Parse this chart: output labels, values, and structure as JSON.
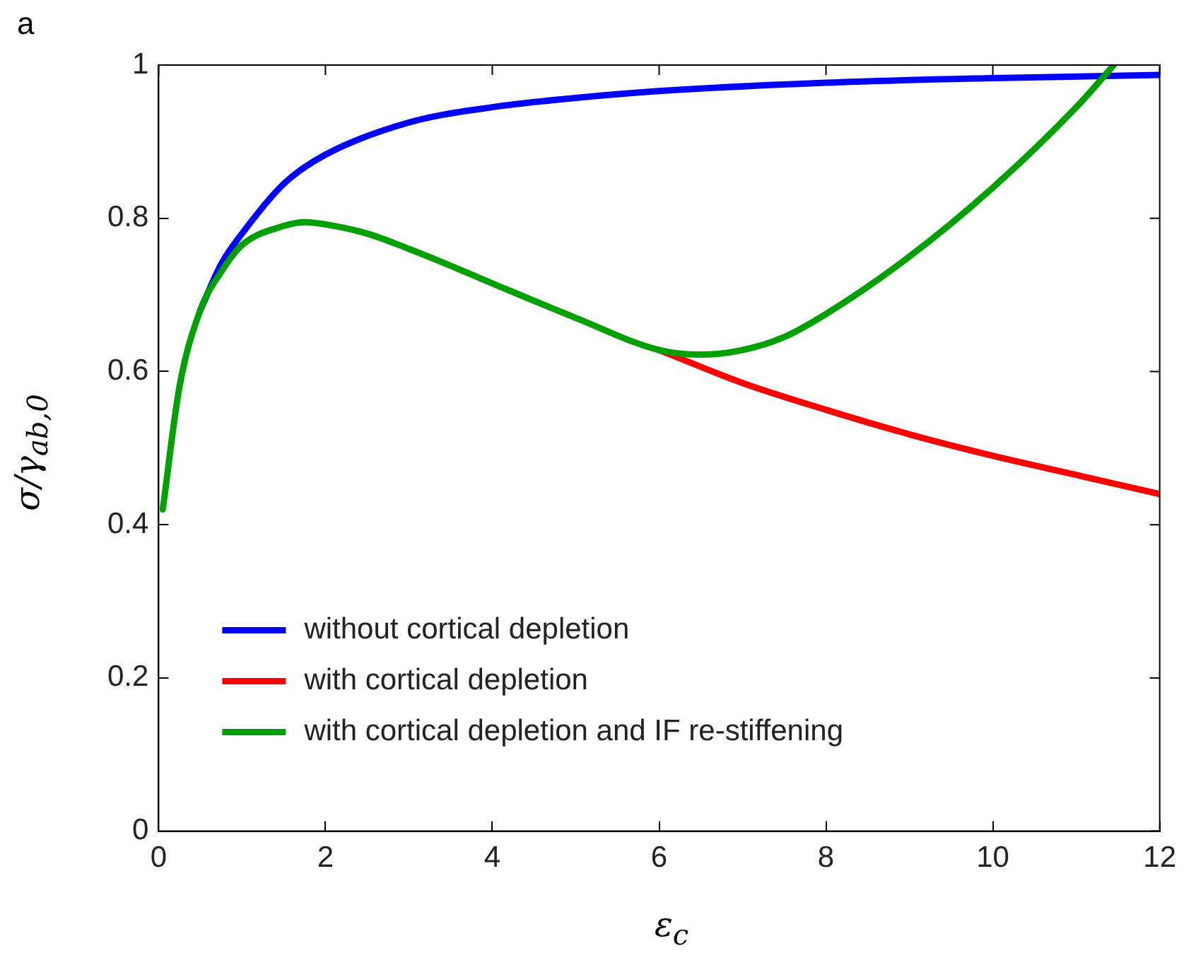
{
  "chart_data": {
    "type": "line",
    "title": "a",
    "xlabel": "ε$_{c}$",
    "ylabel": "σ/γ$_{ab,0}$",
    "xlim": [
      0,
      12
    ],
    "ylim": [
      0,
      1
    ],
    "xticks": [
      0,
      2,
      4,
      6,
      8,
      10,
      12
    ],
    "yticks": [
      0,
      0.2,
      0.4,
      0.6,
      0.8,
      1
    ],
    "grid": false,
    "legend": "bottom left",
    "marker": "none",
    "line_style": "solid",
    "series": [
      {
        "name": "without cortical depletion",
        "color": "#0000ff",
        "x": [
          0.5,
          0.75,
          1,
          1.5,
          2,
          3,
          4,
          5,
          6,
          8,
          10,
          12
        ],
        "values": [
          0.68,
          0.74,
          0.78,
          0.845,
          0.883,
          0.925,
          0.945,
          0.957,
          0.966,
          0.977,
          0.983,
          0.987
        ]
      },
      {
        "name": "with cortical depletion",
        "color": "#ff0000",
        "x": [
          6,
          7,
          8,
          9,
          10,
          11,
          12
        ],
        "values": [
          0.628,
          0.585,
          0.55,
          0.518,
          0.49,
          0.465,
          0.44
        ]
      },
      {
        "name": "with cortical depletion and IF re-stiffening",
        "color": "#00a000",
        "x": [
          0.05,
          0.25,
          0.5,
          0.75,
          1,
          1.5,
          1.75,
          2,
          2.5,
          3,
          3.5,
          4,
          5,
          6,
          6.5,
          7,
          7.5,
          8,
          9,
          10,
          11,
          11.45
        ],
        "values": [
          0.42,
          0.58,
          0.68,
          0.73,
          0.765,
          0.79,
          0.795,
          0.792,
          0.78,
          0.76,
          0.738,
          0.715,
          0.67,
          0.628,
          0.622,
          0.628,
          0.645,
          0.675,
          0.75,
          0.84,
          0.945,
          1.0
        ]
      }
    ]
  }
}
